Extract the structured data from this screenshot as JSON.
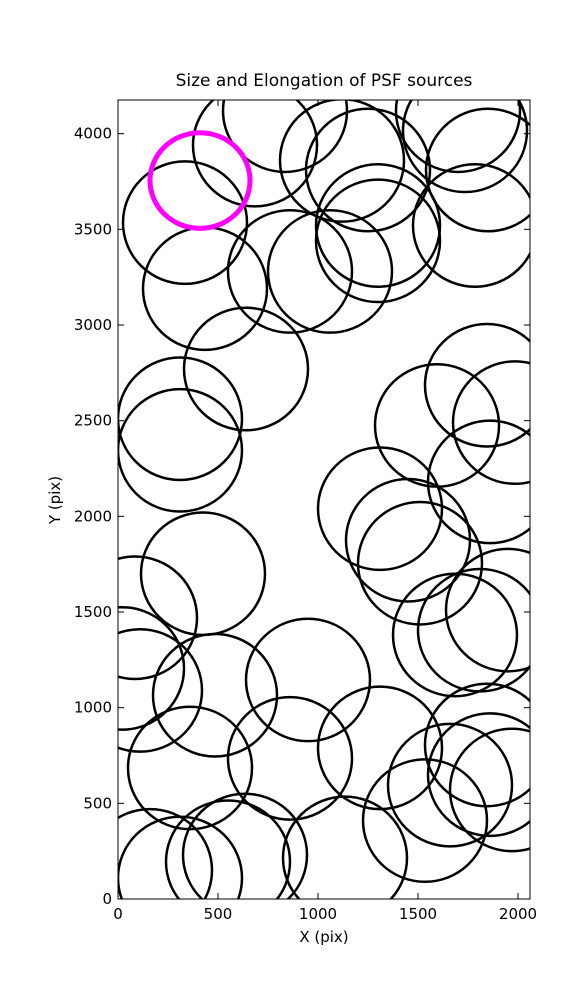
{
  "chart_data": {
    "type": "ellipse",
    "title": "Size and Elongation of PSF sources",
    "x_label": "X (pix)",
    "y_label": "Y (pix)",
    "xlim": [
      0,
      2060
    ],
    "ylim": [
      0,
      4176
    ],
    "xticks": [
      0,
      500,
      1000,
      1500,
      2000
    ],
    "yticks": [
      0,
      500,
      1000,
      1500,
      2000,
      2500,
      3000,
      3500,
      4000
    ],
    "series": [
      {
        "color": "#000000",
        "x": [
          685,
          835,
          1120,
          1250,
          1300,
          1300,
          1060,
          860,
          435,
          335,
          1735,
          1785,
          1850,
          1700,
          640,
          310,
          310,
          1845,
          1595,
          1985,
          1860,
          1310,
          1450,
          1510,
          425,
          85,
          1685,
          1810,
          1950,
          20,
          110,
          485,
          950,
          860,
          360,
          1310,
          1845,
          1860,
          1970,
          1660,
          1535,
          1135,
          635,
          550,
          160,
          310
        ],
        "y": [
          3940,
          4120,
          3860,
          3810,
          3520,
          3440,
          3280,
          3280,
          3190,
          3535,
          4015,
          3520,
          3810,
          4120,
          2770,
          2510,
          2345,
          2685,
          2475,
          2490,
          2180,
          2040,
          1875,
          1755,
          1700,
          1470,
          1380,
          1405,
          1510,
          1205,
          1090,
          1065,
          1145,
          735,
          685,
          790,
          805,
          650,
          570,
          595,
          410,
          215,
          230,
          195,
          150,
          110
        ],
        "widths": [
          620,
          620,
          620,
          620,
          620,
          620,
          620,
          620,
          620,
          620,
          620,
          620,
          620,
          620,
          620,
          620,
          620,
          620,
          620,
          620,
          620,
          620,
          620,
          620,
          620,
          620,
          620,
          620,
          620,
          620,
          620,
          620,
          620,
          620,
          620,
          620,
          620,
          620,
          620,
          620,
          620,
          620,
          620,
          620,
          620,
          620
        ],
        "heights": [
          640,
          640,
          640,
          640,
          640,
          640,
          640,
          640,
          640,
          640,
          640,
          640,
          640,
          640,
          640,
          640,
          640,
          640,
          640,
          640,
          640,
          640,
          640,
          640,
          640,
          640,
          640,
          640,
          640,
          640,
          640,
          640,
          640,
          640,
          640,
          640,
          640,
          640,
          640,
          640,
          640,
          640,
          640,
          640,
          640,
          640
        ]
      },
      {
        "color": "#ff00ff",
        "x": [
          410
        ],
        "y": [
          3755
        ],
        "widths": [
          500
        ],
        "heights": [
          500
        ]
      }
    ]
  }
}
